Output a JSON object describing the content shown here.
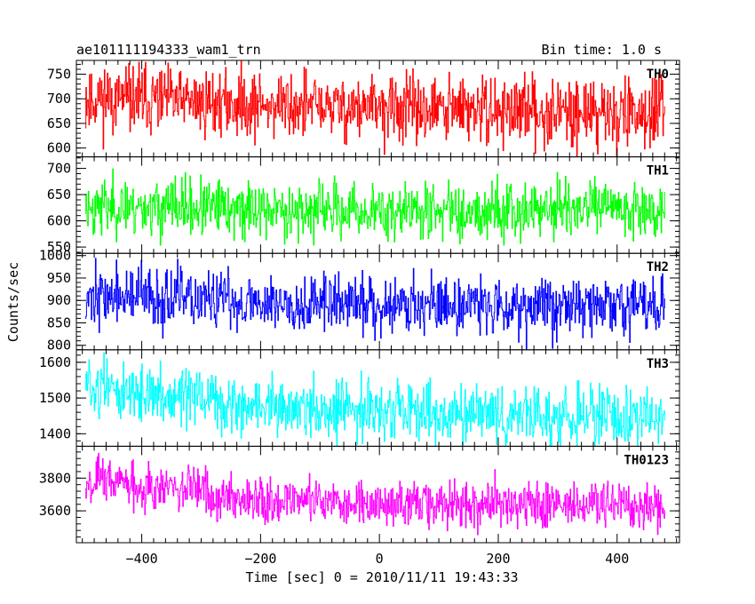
{
  "header": {
    "title": "ae101111194333_wam1_trn",
    "bin_time": "Bin time: 1.0 s"
  },
  "chart_data": {
    "type": "line",
    "title": "ae101111194333_wam1_trn",
    "xlabel": "Time [sec] 0 = 2010/11/11 19:43:33",
    "ylabel": "Counts/sec",
    "xlim": [
      -510,
      505
    ],
    "xticks": [
      -400,
      -200,
      0,
      200,
      400
    ],
    "x_range_data": [
      -495,
      480
    ],
    "grid": false,
    "legend": "none",
    "panels": [
      {
        "name": "TH0",
        "color": "#ff0000",
        "ylim": [
          582,
          778
        ],
        "yticks": [
          600,
          650,
          700,
          750
        ],
        "trend": [
          [
            -495,
            702
          ],
          [
            -250,
            690
          ],
          [
            0,
            680
          ],
          [
            250,
            675
          ],
          [
            480,
            670
          ]
        ],
        "noise": 34,
        "seed": 11
      },
      {
        "name": "TH1",
        "color": "#00ff00",
        "ylim": [
          538,
          722
        ],
        "yticks": [
          550,
          600,
          650,
          700
        ],
        "trend": [
          [
            -495,
            628
          ],
          [
            -250,
            622
          ],
          [
            0,
            618
          ],
          [
            250,
            622
          ],
          [
            480,
            625
          ]
        ],
        "noise": 27,
        "seed": 23
      },
      {
        "name": "TH2",
        "color": "#0000ff",
        "ylim": [
          790,
          1005
        ],
        "yticks": [
          800,
          850,
          900,
          950,
          1000
        ],
        "trend": [
          [
            -495,
            912
          ],
          [
            -250,
            898
          ],
          [
            0,
            892
          ],
          [
            250,
            890
          ],
          [
            480,
            888
          ]
        ],
        "noise": 33,
        "seed": 37
      },
      {
        "name": "TH3",
        "color": "#00ffff",
        "ylim": [
          1365,
          1635
        ],
        "yticks": [
          1400,
          1500,
          1600
        ],
        "trend": [
          [
            -495,
            1535
          ],
          [
            -250,
            1480
          ],
          [
            0,
            1460
          ],
          [
            250,
            1450
          ],
          [
            480,
            1445
          ]
        ],
        "noise": 40,
        "seed": 51
      },
      {
        "name": "TH0123",
        "color": "#ff00ff",
        "ylim": [
          3405,
          3995
        ],
        "yticks": [
          3600,
          3800
        ],
        "trend": [
          [
            -495,
            3800
          ],
          [
            -250,
            3690
          ],
          [
            0,
            3640
          ],
          [
            250,
            3640
          ],
          [
            480,
            3630
          ]
        ],
        "noise": 72,
        "seed": 67
      }
    ]
  }
}
